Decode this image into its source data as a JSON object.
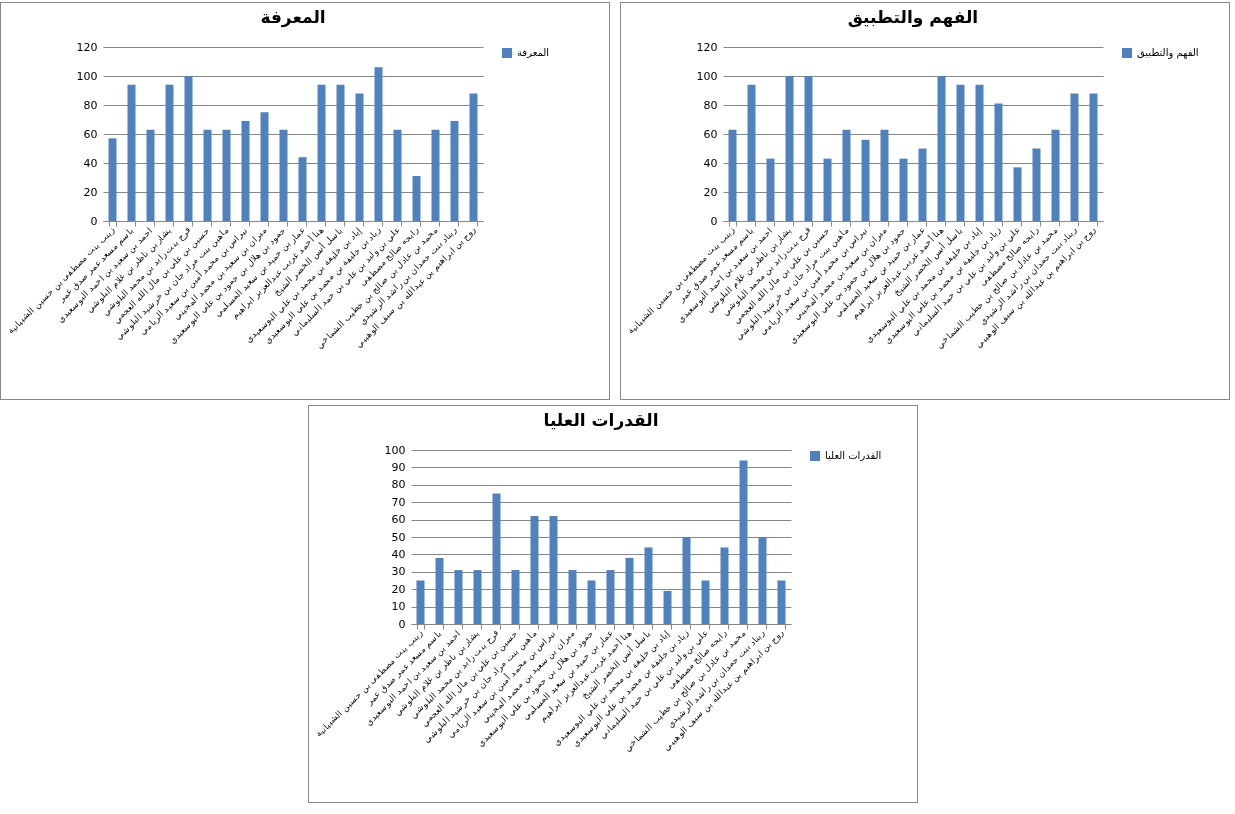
{
  "chart_data": [
    {
      "type": "bar",
      "title": "المعرفة",
      "categories": [
        "زينب بنت مصطفى بن حسين الشيبانية",
        "باسم مسعد عمر صدق عمر",
        "احمد بن سعيد بن احمد البوسعيدي",
        "بشار بن ناظر بن غلام البلوشي",
        "فرح بنت زايد بن محمد البلوشي",
        "حسين بن علي بن مال الله العجمي",
        "ماهين بنت مراد جان بن خرشيد البلوشي",
        "نبراس بن محمد أمين بن سعيد الريامي",
        "ميران بن سعيد بن محمد المجيني",
        "حمود بن هلال بن حمود بن علي البوسعيدي",
        "عمار بن حميد بن سعيد المسلمي",
        "هنا أحمد غريب عبدالعزيز ابراهيم",
        "باسل أنس الخضر الشيخ",
        "إياد بن خليفة بن محمد بن علي البوسعيدي",
        "زياد بن خليفة بن محمد بن علي البوسعيدي",
        "علي بن وليد بن علي بن حمد السليماني",
        "رابحه صالح مصطفى",
        "محمد بن عادل بن صالح بن خطيب الشماخي",
        "ريناد بنت حمدان بن راشد الرشيدي",
        "روح بن ابراهيم بن عبدالله بن سيف الوهيبي"
      ],
      "series": [
        {
          "name": "المعرفة",
          "color": "#4f81bd",
          "values": [
            57,
            94,
            63,
            94,
            100,
            63,
            63,
            69,
            75,
            63,
            44,
            94,
            94,
            88,
            106,
            63,
            31,
            63,
            69,
            88
          ]
        }
      ],
      "ylim": [
        0,
        120
      ],
      "yticks": [
        0,
        20,
        40,
        60,
        80,
        100,
        120
      ],
      "grid": "y",
      "legend": "right"
    },
    {
      "type": "bar",
      "title": "الفهم والتطبيق",
      "categories": [
        "زينب بنت مصطفى بن حسين الشيبانية",
        "باسم مسعد عمر صدق عمر",
        "احمد بن سعيد بن احمد البوسعيدي",
        "بشار بن ناظر بن غلام البلوشي",
        "فرح بنت زايد بن محمد البلوشي",
        "حسين بن علي بن مال الله العجمي",
        "ماهين بنت مراد جان بن خرشيد البلوشي",
        "نبراس بن محمد أمين بن سعيد الريامي",
        "ميران بن سعيد بن محمد المجيني",
        "حمود بن هلال بن حمود بن علي البوسعيدي",
        "عمار بن حميد بن سعيد المسلمي",
        "هنا أحمد غريب عبدالعزيز ابراهيم",
        "باسل أنس الخضر الشيخ",
        "إياد بن خليفة بن محمد بن علي البوسعيدي",
        "زياد بن خليفة بن محمد بن علي البوسعيدي",
        "علي بن وليد بن علي بن حمد السليماني",
        "رابحه صالح مصطفى",
        "محمد بن عادل بن صالح بن خطيب الشماخي",
        "ريناد بنت حمدان بن راشد الرشيدي",
        "روح بن ابراهيم بن عبدالله بن سيف الوهيبي"
      ],
      "series": [
        {
          "name": "الفهم والتطبيق",
          "color": "#4f81bd",
          "values": [
            63,
            94,
            43,
            100,
            100,
            43,
            63,
            56,
            63,
            43,
            50,
            100,
            94,
            94,
            81,
            37,
            50,
            63,
            88,
            88
          ]
        }
      ],
      "ylim": [
        0,
        120
      ],
      "yticks": [
        0,
        20,
        40,
        60,
        80,
        100,
        120
      ],
      "grid": "y",
      "legend": "right"
    },
    {
      "type": "bar",
      "title": "القدرات العليا",
      "categories": [
        "زينب بنت مصطفى بن حسين الشيبانية",
        "باسم مسعد عمر صدق عمر",
        "احمد بن سعيد بن احمد البوسعيدي",
        "بشار بن ناظر بن غلام البلوشي",
        "فرح بنت زايد بن محمد البلوشي",
        "حسين بن علي بن مال الله العجمي",
        "ماهين بنت مراد جان بن خرشيد البلوشي",
        "نبراس بن محمد أمين بن سعيد الريامي",
        "ميران بن سعيد بن محمد المجيني",
        "حمود بن هلال بن حمود بن علي البوسعيدي",
        "عمار بن حميد بن سعيد المسلمي",
        "هنا أحمد غريب عبدالعزيز ابراهيم",
        "باسل أنس الخضر الشيخ",
        "إياد بن خليفة بن محمد بن علي البوسعيدي",
        "زياد بن خليفة بن محمد بن علي البوسعيدي",
        "علي بن وليد بن علي بن حمد السليماني",
        "رابحه صالح مصطفى",
        "محمد بن عادل بن صالح بن خطيب الشماخي",
        "ريناد بنت حمدان بن راشد الرشيدي",
        "روح بن ابراهيم بن عبدالله بن سيف الوهيبي"
      ],
      "series": [
        {
          "name": "القدرات العليا",
          "color": "#4f81bd",
          "values": [
            25,
            38,
            31,
            31,
            75,
            31,
            62,
            62,
            31,
            25,
            31,
            38,
            44,
            19,
            50,
            25,
            44,
            94,
            50,
            25
          ]
        }
      ],
      "ylim": [
        0,
        100
      ],
      "yticks": [
        0,
        10,
        20,
        30,
        40,
        50,
        60,
        70,
        80,
        90,
        100
      ],
      "grid": "y",
      "legend": "right"
    }
  ]
}
